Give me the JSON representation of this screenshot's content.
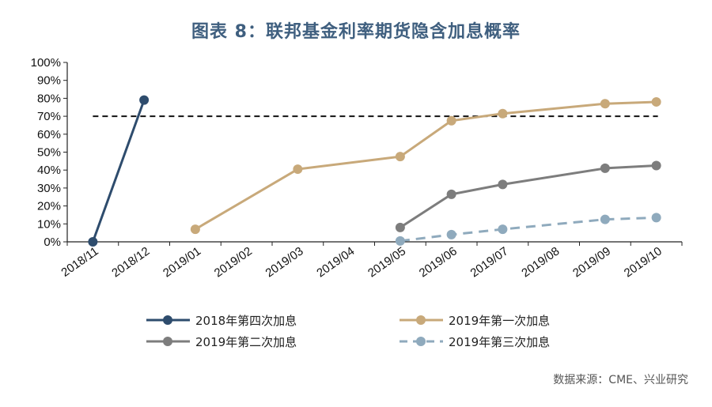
{
  "chart_data": {
    "type": "line",
    "title": "图表 8：联邦基金利率期货隐含加息概率",
    "source": "数据来源：CME、兴业研究",
    "categories": [
      "2018/11",
      "2018/12",
      "2019/01",
      "2019/02",
      "2019/03",
      "2019/04",
      "2019/05",
      "2019/06",
      "2019/07",
      "2019/08",
      "2019/09",
      "2019/10"
    ],
    "y_tick_labels": [
      "0%",
      "10%",
      "20%",
      "30%",
      "40%",
      "50%",
      "60%",
      "70%",
      "80%",
      "90%",
      "100%"
    ],
    "ylim": [
      0,
      100
    ],
    "reference_line": {
      "value": 70,
      "style": "dashed",
      "color": "#111111"
    },
    "legend_position": "bottom",
    "series": [
      {
        "name": "2018年第四次加息",
        "color": "#2e4c6d",
        "style": "solid",
        "points": [
          [
            "2018/11",
            0
          ],
          [
            "2018/12",
            79
          ]
        ]
      },
      {
        "name": "2019年第一次加息",
        "color": "#c8a97a",
        "style": "solid",
        "points": [
          [
            "2019/01",
            7
          ],
          [
            "2019/03",
            40.5
          ],
          [
            "2019/05",
            47.5
          ],
          [
            "2019/06",
            67.5
          ],
          [
            "2019/07",
            71.5
          ],
          [
            "2019/09",
            77
          ],
          [
            "2019/10",
            78
          ]
        ]
      },
      {
        "name": "2019年第二次加息",
        "color": "#7d7d7d",
        "style": "solid",
        "points": [
          [
            "2019/05",
            8
          ],
          [
            "2019/06",
            26.5
          ],
          [
            "2019/07",
            32
          ],
          [
            "2019/09",
            41
          ],
          [
            "2019/10",
            42.5
          ]
        ]
      },
      {
        "name": "2019年第三次加息",
        "color": "#8faabd",
        "style": "dashed",
        "points": [
          [
            "2019/05",
            0.5
          ],
          [
            "2019/06",
            4
          ],
          [
            "2019/07",
            7
          ],
          [
            "2019/09",
            12.5
          ],
          [
            "2019/10",
            13.5
          ]
        ]
      }
    ]
  }
}
